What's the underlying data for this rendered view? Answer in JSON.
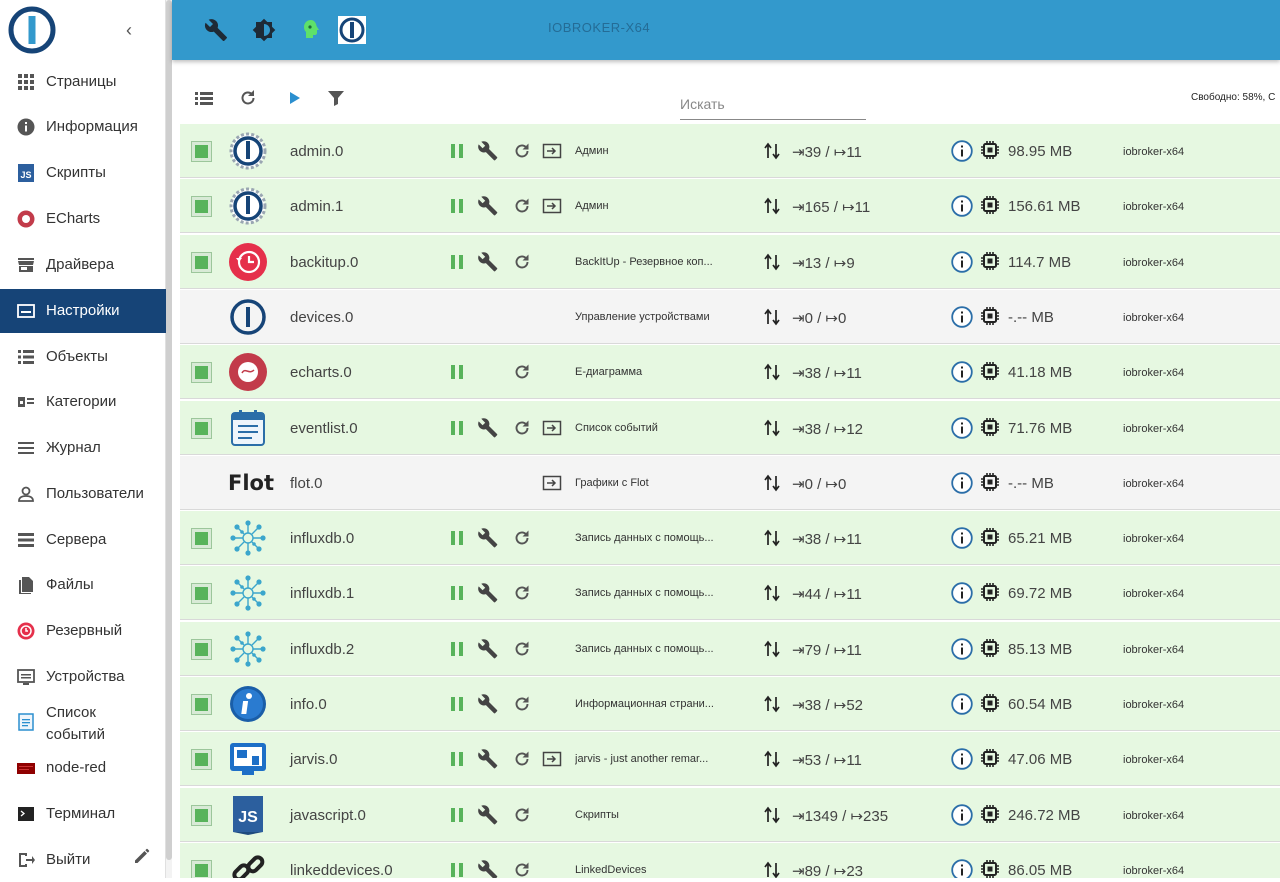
{
  "colors": {
    "brand": "#164477",
    "topbar": "#3399cc",
    "running": "#58b35b",
    "row_on": "#e6f8e1",
    "row_off": "#f4f4f4"
  },
  "sidebar": {
    "collapse_icon": "chevron-left-icon",
    "items": [
      {
        "label": "Страницы",
        "icon": "apps-grid-icon"
      },
      {
        "label": "Информация",
        "icon": "info-icon"
      },
      {
        "label": "Скрипты",
        "icon": "js-icon"
      },
      {
        "label": "ECharts",
        "icon": "echarts-icon"
      },
      {
        "label": "Драйвера",
        "icon": "store-icon"
      },
      {
        "label": "Настройки",
        "icon": "instances-icon",
        "active": true
      },
      {
        "label": "Объекты",
        "icon": "list-icon"
      },
      {
        "label": "Категории",
        "icon": "categories-icon"
      },
      {
        "label": "Журнал",
        "icon": "log-icon"
      },
      {
        "label": "Пользователи",
        "icon": "user-icon"
      },
      {
        "label": "Сервера",
        "icon": "hosts-icon"
      },
      {
        "label": "Файлы",
        "icon": "files-icon"
      },
      {
        "label": "Резервный",
        "icon": "backup-icon"
      },
      {
        "label": "Устройства",
        "icon": "devices-icon"
      },
      {
        "label": "Список событий",
        "icon": "eventlist-icon"
      },
      {
        "label": "node-red",
        "icon": "node-red-icon"
      },
      {
        "label": "Терминал",
        "icon": "terminal-icon"
      },
      {
        "label": "Выйти",
        "icon": "logout-icon"
      }
    ],
    "edit_icon": "pencil-icon"
  },
  "topbar": {
    "host_title": "IOBROKER-X64",
    "icons": [
      "wrench-icon",
      "theme-icon",
      "expert-mode-icon",
      "host-logo-icon"
    ]
  },
  "toolbar": {
    "search_placeholder": "Искать",
    "free_text": "Свободно: 58%, С",
    "icons": [
      "list-view-icon",
      "refresh-icon",
      "play-icon",
      "filter-icon"
    ]
  },
  "instances": [
    {
      "name": "admin.0",
      "desc": "Админ",
      "events": "⇥39 / ↦11",
      "memory": "98.95 MB",
      "host": "iobroker-x64",
      "icon": "admin-icon",
      "enabled": true,
      "controls": [
        "pause",
        "settings",
        "restart",
        "link"
      ]
    },
    {
      "name": "admin.1",
      "desc": "Админ",
      "events": "⇥165 / ↦11",
      "memory": "156.61 MB",
      "host": "iobroker-x64",
      "icon": "admin-icon",
      "enabled": true,
      "controls": [
        "pause",
        "settings",
        "restart",
        "link"
      ]
    },
    {
      "name": "backitup.0",
      "desc": "BackItUp - Резервное коп...",
      "events": "⇥13 / ↦9",
      "memory": "114.7 MB",
      "host": "iobroker-x64",
      "icon": "backitup-icon",
      "enabled": true,
      "controls": [
        "pause",
        "settings",
        "restart"
      ]
    },
    {
      "name": "devices.0",
      "desc": "Управление устройствами",
      "events": "⇥0 / ↦0",
      "memory": "-.-- MB",
      "host": "iobroker-x64",
      "icon": "devices-logo-icon",
      "enabled": false,
      "controls": []
    },
    {
      "name": "echarts.0",
      "desc": "E-диаграмма",
      "events": "⇥38 / ↦11",
      "memory": "41.18 MB",
      "host": "iobroker-x64",
      "icon": "echarts-logo-icon",
      "enabled": true,
      "controls": [
        "pause",
        "restart"
      ]
    },
    {
      "name": "eventlist.0",
      "desc": "Список событий",
      "events": "⇥38 / ↦12",
      "memory": "71.76 MB",
      "host": "iobroker-x64",
      "icon": "eventlist-logo-icon",
      "enabled": true,
      "controls": [
        "pause",
        "settings",
        "restart",
        "link"
      ]
    },
    {
      "name": "flot.0",
      "desc": "Графики с Flot",
      "events": "⇥0 / ↦0",
      "memory": "-.-- MB",
      "host": "iobroker-x64",
      "icon": "flot-logo-icon",
      "logo_text": "Flot",
      "enabled": false,
      "controls": [
        "link"
      ]
    },
    {
      "name": "influxdb.0",
      "desc": "Запись данных с помощь...",
      "events": "⇥38 / ↦11",
      "memory": "65.21 MB",
      "host": "iobroker-x64",
      "icon": "influxdb-logo-icon",
      "enabled": true,
      "controls": [
        "pause",
        "settings",
        "restart"
      ]
    },
    {
      "name": "influxdb.1",
      "desc": "Запись данных с помощь...",
      "events": "⇥44 / ↦11",
      "memory": "69.72 MB",
      "host": "iobroker-x64",
      "icon": "influxdb-logo-icon",
      "enabled": true,
      "controls": [
        "pause",
        "settings",
        "restart"
      ]
    },
    {
      "name": "influxdb.2",
      "desc": "Запись данных с помощь...",
      "events": "⇥79 / ↦11",
      "memory": "85.13 MB",
      "host": "iobroker-x64",
      "icon": "influxdb-logo-icon",
      "enabled": true,
      "controls": [
        "pause",
        "settings",
        "restart"
      ]
    },
    {
      "name": "info.0",
      "desc": "Информационная страни...",
      "events": "⇥38 / ↦52",
      "memory": "60.54 MB",
      "host": "iobroker-x64",
      "icon": "info-logo-icon",
      "enabled": true,
      "controls": [
        "pause",
        "settings",
        "restart"
      ]
    },
    {
      "name": "jarvis.0",
      "desc": "jarvis - just another remar...",
      "events": "⇥53 / ↦11",
      "memory": "47.06 MB",
      "host": "iobroker-x64",
      "icon": "jarvis-logo-icon",
      "enabled": true,
      "controls": [
        "pause",
        "settings",
        "restart",
        "link"
      ]
    },
    {
      "name": "javascript.0",
      "desc": "Скрипты",
      "events": "⇥1349 / ↦235",
      "memory": "246.72 MB",
      "host": "iobroker-x64",
      "icon": "javascript-logo-icon",
      "enabled": true,
      "controls": [
        "pause",
        "settings",
        "restart"
      ]
    },
    {
      "name": "linkeddevices.0",
      "desc": "LinkedDevices",
      "events": "⇥89 / ↦23",
      "memory": "86.05 MB",
      "host": "iobroker-x64",
      "icon": "linkeddevices-logo-icon",
      "enabled": true,
      "controls": [
        "pause",
        "settings",
        "restart"
      ]
    }
  ]
}
